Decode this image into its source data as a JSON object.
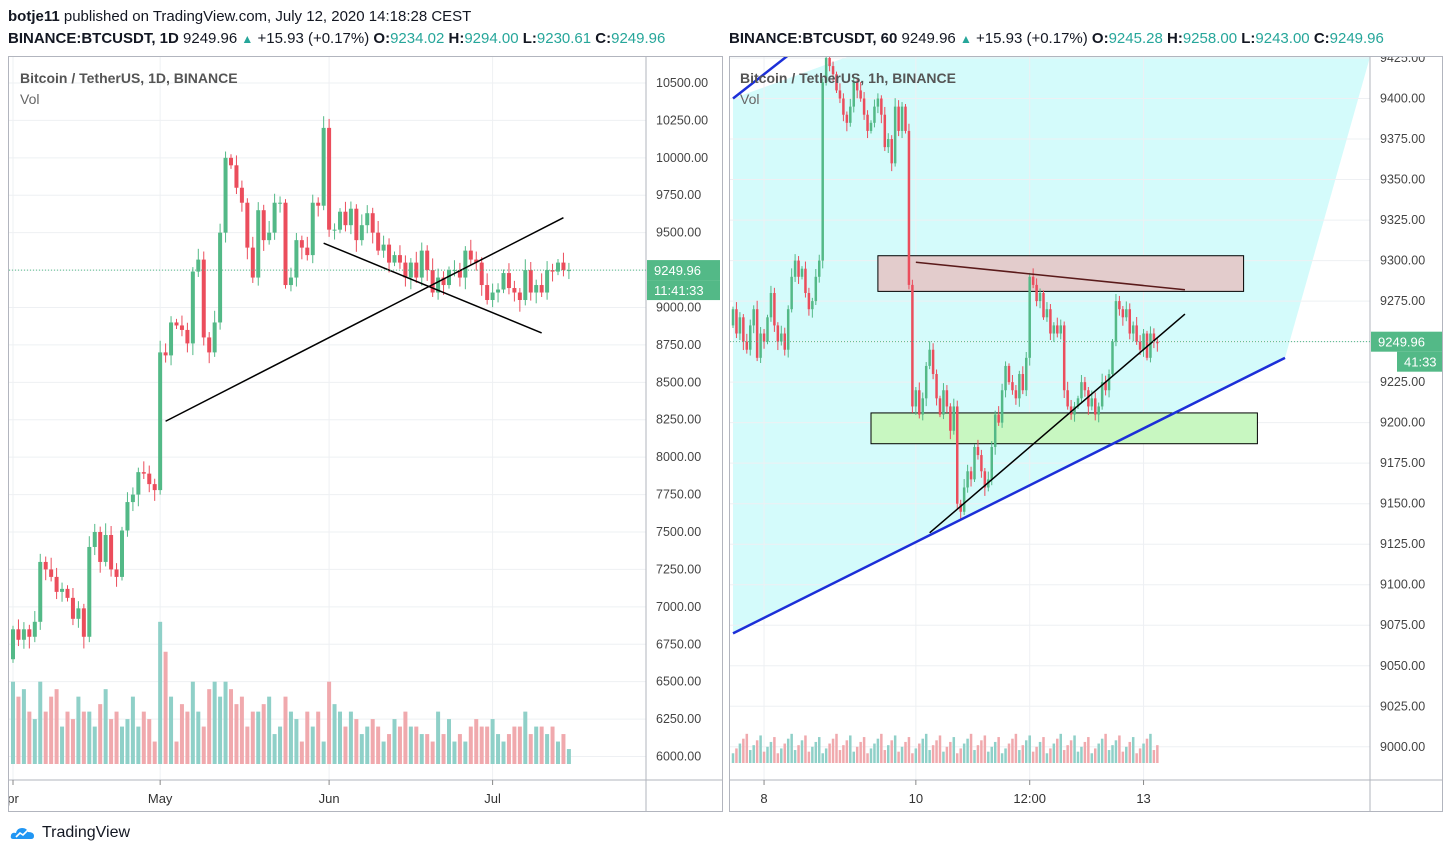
{
  "header": {
    "author": "botje11",
    "published": "published on TradingView.com, July 12, 2020 14:18:28 CEST"
  },
  "quotes": [
    {
      "symbol": "BINANCE:BTCUSDT, 1D",
      "last": "9249.96",
      "change": "+15.93 (+0.17%)",
      "o_label": "O:",
      "o": "9234.02",
      "h_label": "H:",
      "h": "9294.00",
      "l_label": "L:",
      "l": "9230.61",
      "c_label": "C:",
      "c": "9249.96"
    },
    {
      "symbol": "BINANCE:BTCUSDT, 60",
      "last": "9249.96",
      "change": "+15.93 (+0.17%)",
      "o_label": "O:",
      "o": "9245.28",
      "h_label": "H:",
      "h": "9258.00",
      "l_label": "L:",
      "l": "9243.00",
      "c_label": "C:",
      "c": "9249.96"
    }
  ],
  "colors": {
    "up": "#53b987",
    "down": "#eb4d5c",
    "vol_up": "#8fd0c8",
    "vol_down": "#f0a9ad",
    "band": "#d4fbfb",
    "resistance": "#e3cccc",
    "support": "#c8f7c1",
    "trend_blue": "#1c2fd8",
    "price_tag": "#53b987"
  },
  "chart_data": [
    {
      "type": "candlestick",
      "title": "Bitcoin / TetherUS, 1D, BINANCE",
      "indicator": "Vol",
      "y_ticks": [
        "10500.00",
        "10250.00",
        "10000.00",
        "9750.00",
        "9500.00",
        "9250.00",
        "9000.00",
        "8750.00",
        "8500.00",
        "8250.00",
        "8000.00",
        "7750.00",
        "7500.00",
        "7250.00",
        "7000.00",
        "6750.00",
        "6500.00",
        "6250.00",
        "6000.00"
      ],
      "ylim": [
        5950,
        10560
      ],
      "x_labels": [
        {
          "label": "pr",
          "index": 0
        },
        {
          "label": "May",
          "index": 27
        },
        {
          "label": "Jun",
          "index": 58
        },
        {
          "label": "Jul",
          "index": 88
        }
      ],
      "last_price": "9249.96",
      "countdown": "11:41:33",
      "trendlines": [
        {
          "from": [
            28,
            8240
          ],
          "to": [
            101,
            9600
          ]
        },
        {
          "from": [
            57,
            9430
          ],
          "to": [
            97,
            8830
          ]
        }
      ],
      "start": 6650,
      "closes": [
        6850,
        6780,
        6850,
        6800,
        6900,
        7300,
        7250,
        7200,
        7100,
        7120,
        7060,
        6920,
        6990,
        6800,
        7400,
        7500,
        7300,
        7480,
        7250,
        7200,
        7510,
        7700,
        7750,
        7900,
        7890,
        7820,
        7780,
        8700,
        8680,
        8900,
        8880,
        8850,
        8760,
        9240,
        9320,
        8800,
        8700,
        8900,
        9500,
        10000,
        9950,
        9800,
        9700,
        9400,
        9200,
        9650,
        9450,
        9500,
        9700,
        9700,
        9150,
        9200,
        9450,
        9400,
        9350,
        9700,
        9680,
        10200,
        9520,
        9520,
        9640,
        9550,
        9660,
        9450,
        9550,
        9630,
        9500,
        9380,
        9420,
        9300,
        9350,
        9300,
        9200,
        9300,
        9200,
        9380,
        9250,
        9100,
        9200,
        9150,
        9250,
        9250,
        9200,
        9380,
        9320,
        9300,
        9150,
        9050,
        9100,
        9120,
        9230,
        9130,
        9100,
        9050,
        9250,
        9100,
        9150,
        9100,
        9250,
        9240,
        9300,
        9250,
        9250
      ],
      "volumes": [
        6500,
        6400,
        6450,
        6300,
        6250,
        6500,
        6300,
        6400,
        6450,
        6200,
        6300,
        6250,
        6400,
        6300,
        6300,
        6200,
        6350,
        6450,
        6250,
        6300,
        6200,
        6250,
        6400,
        6200,
        6300,
        6250,
        6100,
        6900,
        6700,
        6400,
        6100,
        6350,
        6300,
        6500,
        6300,
        6200,
        6450,
        6500,
        6400,
        6500,
        6450,
        6350,
        6400,
        6200,
        6300,
        6300,
        6350,
        6400,
        6150,
        6200,
        6400,
        6300,
        6250,
        6100,
        6300,
        6200,
        6300,
        6100,
        6500,
        6350,
        6300,
        6200,
        6300,
        6250,
        6150,
        6200,
        6250,
        6200,
        6100,
        6150,
        6250,
        6200,
        6300,
        6200,
        6200,
        6150,
        6150,
        6100,
        6300,
        6150,
        6250,
        6100,
        6150,
        6100,
        6200,
        6250,
        6200,
        6200,
        6250,
        6150,
        6100,
        6150,
        6200,
        6200,
        6300,
        6150,
        6200,
        6200,
        6150,
        6200,
        6100,
        6150,
        6050
      ]
    },
    {
      "type": "candlestick",
      "title": "Bitcoin / TetherUS, 1h, BINANCE",
      "indicator": "Vol",
      "y_ticks": [
        "9425.00",
        "9400.00",
        "9375.00",
        "9350.00",
        "9325.00",
        "9300.00",
        "9275.00",
        "9250.00",
        "9225.00",
        "9200.00",
        "9175.00",
        "9150.00",
        "9125.00",
        "9100.00",
        "9075.00",
        "9050.00",
        "9025.00",
        "9000.00"
      ],
      "ylim": [
        8990,
        9425
      ],
      "x_labels": [
        {
          "label": "8",
          "index": 9
        },
        {
          "label": "10",
          "index": 53
        },
        {
          "label": "12:00",
          "index": 86
        },
        {
          "label": "13",
          "index": 119
        }
      ],
      "last_price": "9249.96",
      "countdown": "41:33",
      "zones": [
        {
          "name": "resistance",
          "from_index": 42,
          "to_index": 148,
          "low": 9281,
          "high": 9303
        },
        {
          "name": "support",
          "from_index": 40,
          "to_index": 152,
          "low": 9187,
          "high": 9206
        }
      ],
      "trendlines": [
        {
          "color": "dark",
          "from": [
            53,
            9299
          ],
          "to": [
            131,
            9282
          ]
        },
        {
          "color": "black",
          "from": [
            57,
            9132
          ],
          "to": [
            131,
            9267
          ]
        },
        {
          "color": "blue",
          "from": [
            0,
            9070
          ],
          "to": [
            160,
            9240
          ]
        },
        {
          "color": "blue",
          "from": [
            0,
            9400
          ],
          "to": [
            33,
            9455
          ]
        }
      ],
      "start": 9260,
      "closes": [
        9270,
        9255,
        9265,
        9250,
        9245,
        9260,
        9270,
        9240,
        9255,
        9250,
        9265,
        9280,
        9260,
        9250,
        9255,
        9245,
        9270,
        9290,
        9300,
        9290,
        9295,
        9280,
        9270,
        9275,
        9290,
        9300,
        9410,
        9425,
        9420,
        9415,
        9405,
        9400,
        9390,
        9385,
        9395,
        9410,
        9405,
        9400,
        9390,
        9380,
        9385,
        9395,
        9400,
        9390,
        9370,
        9375,
        9360,
        9395,
        9380,
        9395,
        9380,
        9285,
        9210,
        9220,
        9205,
        9215,
        9235,
        9245,
        9230,
        9215,
        9205,
        9220,
        9210,
        9195,
        9210,
        9150,
        9145,
        9160,
        9170,
        9165,
        9185,
        9180,
        9170,
        9160,
        9165,
        9185,
        9205,
        9200,
        9220,
        9235,
        9225,
        9220,
        9215,
        9230,
        9220,
        9240,
        9290,
        9285,
        9275,
        9280,
        9265,
        9270,
        9255,
        9260,
        9255,
        9260,
        9220,
        9210,
        9205,
        9210,
        9215,
        9225,
        9220,
        9210,
        9215,
        9205,
        9210,
        9225,
        9220,
        9230,
        9250,
        9275,
        9270,
        9265,
        9270,
        9255,
        9260,
        9250,
        9245,
        9255,
        9240,
        9255,
        9250,
        9249
      ]
    }
  ],
  "footer": {
    "brand": "TradingView"
  }
}
